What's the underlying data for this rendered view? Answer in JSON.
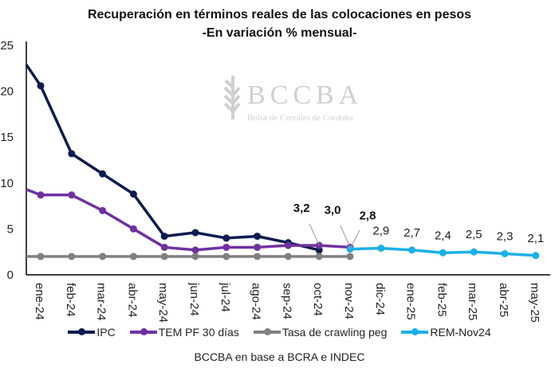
{
  "chart_data": {
    "type": "line",
    "title": "Recuperación en términos reales de las colocaciones en pesos",
    "subtitle": "-En variación % mensual-",
    "xlabel": "",
    "ylabel": "",
    "ylim": [
      0,
      25
    ],
    "yticks": [
      "0",
      "5",
      "10",
      "15",
      "20",
      "25"
    ],
    "grid": false,
    "legend_position": "bottom",
    "categories": [
      "ene-24",
      "feb-24",
      "mar-24",
      "abr-24",
      "may-24",
      "jun-24",
      "jul-24",
      "ago-24",
      "sep-24",
      "oct-24",
      "nov-24",
      "dic-24",
      "ene-25",
      "feb-25",
      "mar-25",
      "abr-25",
      "may-25"
    ],
    "series": [
      {
        "name": "IPC",
        "color": "#0d1b4f",
        "start_value": 22.9,
        "values": [
          20.6,
          13.2,
          11.0,
          8.8,
          4.2,
          4.6,
          4.0,
          4.2,
          3.5,
          2.7,
          null,
          null,
          null,
          null,
          null,
          null,
          null
        ]
      },
      {
        "name": "TEM PF 30 días",
        "color": "#7030a0",
        "start_value": 9.3,
        "values": [
          8.7,
          8.7,
          7.0,
          5.0,
          3.0,
          2.7,
          3.0,
          3.0,
          3.2,
          3.2,
          3.0,
          null,
          null,
          null,
          null,
          null,
          null
        ]
      },
      {
        "name": "Tasa de crawling peg",
        "color": "#808080",
        "start_value": 2.0,
        "values": [
          2.0,
          2.0,
          2.0,
          2.0,
          2.0,
          2.0,
          2.0,
          2.0,
          2.0,
          2.0,
          2.0,
          null,
          null,
          null,
          null,
          null,
          null
        ]
      },
      {
        "name": "REM-Nov24",
        "color": "#1ab0e8",
        "values": [
          null,
          null,
          null,
          null,
          null,
          null,
          null,
          null,
          null,
          null,
          2.8,
          2.9,
          2.7,
          2.4,
          2.5,
          2.3,
          2.1
        ]
      }
    ],
    "annotations": [
      {
        "text": "3,2",
        "bold": true,
        "category": "oct-24"
      },
      {
        "text": "3,0",
        "bold": true,
        "category": "nov-24"
      },
      {
        "text": "2,8",
        "bold": true,
        "category": "nov-24"
      },
      {
        "text": "2,9",
        "bold": false,
        "category": "dic-24"
      },
      {
        "text": "2,7",
        "bold": false,
        "category": "ene-25"
      },
      {
        "text": "2,4",
        "bold": false,
        "category": "feb-25"
      },
      {
        "text": "2,5",
        "bold": false,
        "category": "mar-25"
      },
      {
        "text": "2,3",
        "bold": false,
        "category": "abr-25"
      },
      {
        "text": "2,1",
        "bold": false,
        "category": "may-25"
      }
    ]
  },
  "watermark": {
    "name": "BCCBA",
    "sub": "Bolsa de Cereales de Córdoba"
  },
  "source": "BCCBA en base a BCRA e INDEC"
}
